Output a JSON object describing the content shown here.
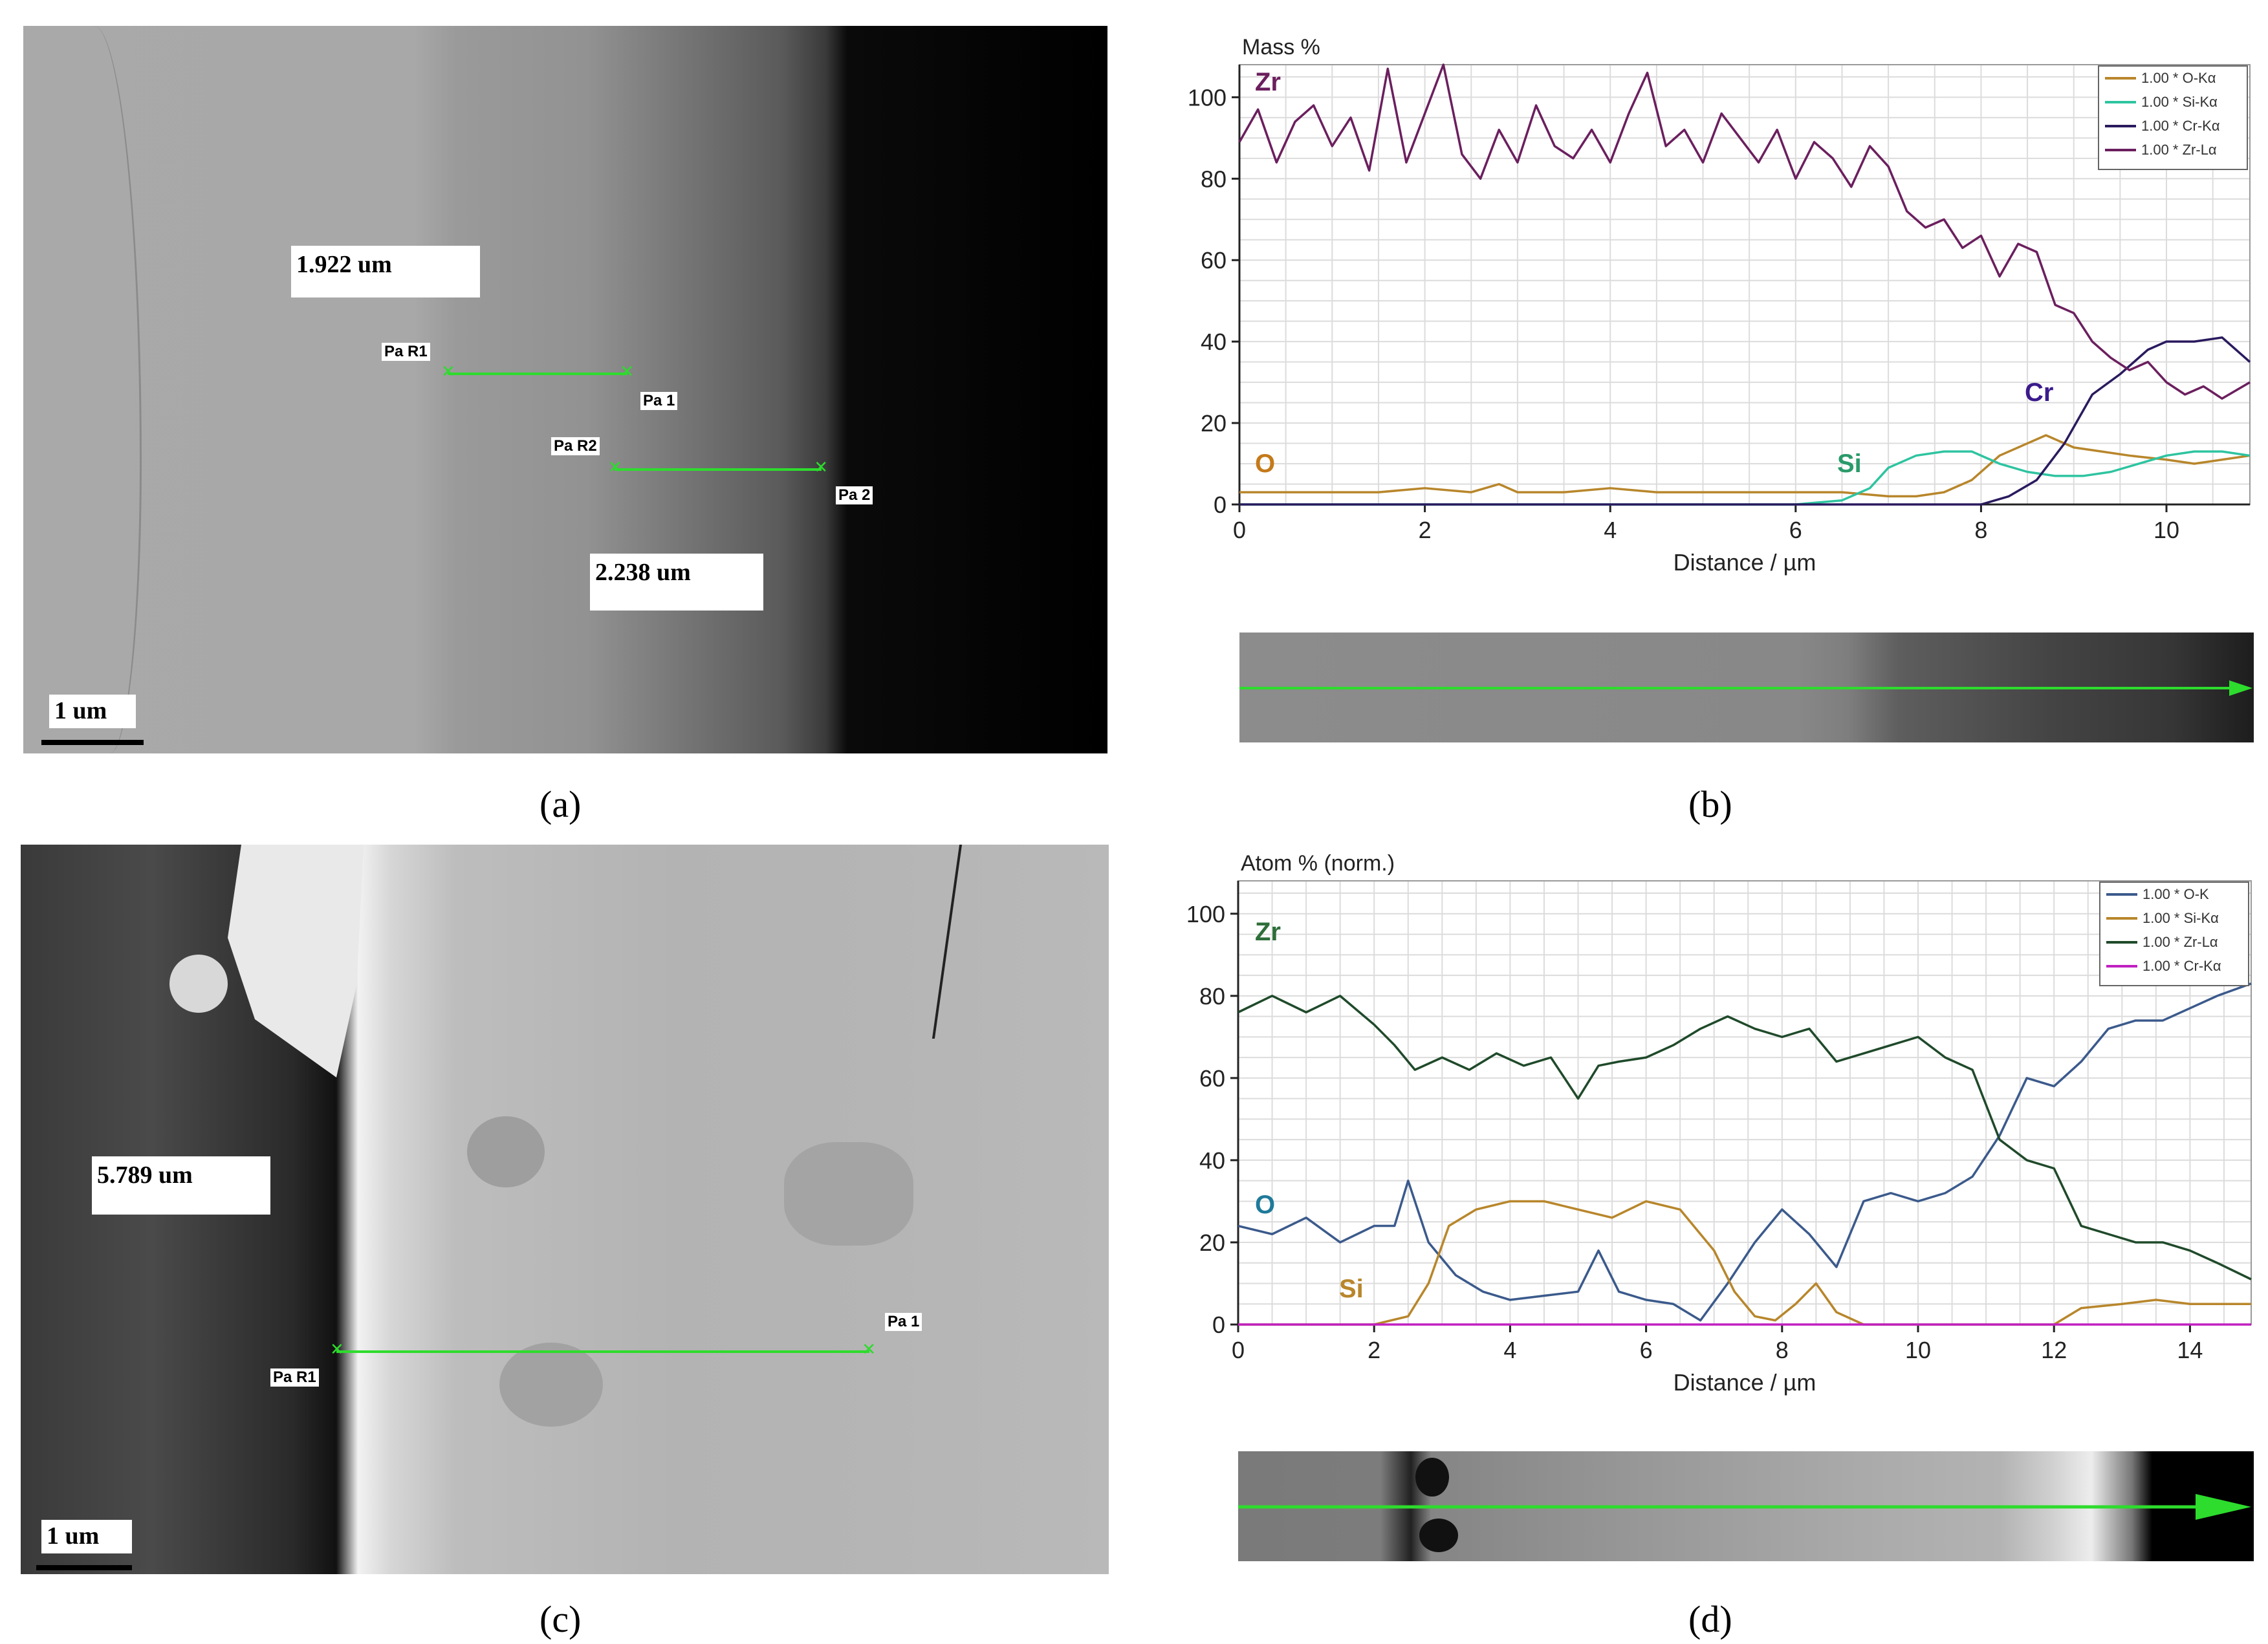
{
  "panel_a": {
    "caption": "(a)",
    "measure1": "1.922 um",
    "measure2": "2.238 um",
    "tags": {
      "pa_r1": "Pa R1",
      "pa_1": "Pa 1",
      "pa_r2": "Pa R2",
      "pa_2": "Pa 2"
    },
    "scale": "1 um"
  },
  "panel_c": {
    "caption": "(c)",
    "measure1": "5.789 um",
    "tags": {
      "pa_r1": "Pa R1",
      "pa_1": "Pa 1"
    },
    "scale": "1 um"
  },
  "panel_b": {
    "caption": "(b)"
  },
  "panel_d": {
    "caption": "(d)"
  },
  "colors": {
    "line_green": "#2ddc2d"
  },
  "chart_data": [
    {
      "type": "line",
      "panel": "b",
      "ylabel": "Mass %",
      "xlabel": "Distance / µm",
      "xlim": [
        0,
        10.9
      ],
      "ylim": [
        0,
        108
      ],
      "xticks": [
        0,
        2,
        4,
        6,
        8,
        10
      ],
      "yticks": [
        0,
        20,
        40,
        60,
        80,
        100
      ],
      "grid": true,
      "legend_position": "top-right",
      "annotations": [
        {
          "text": "Zr",
          "color": "#6b1f5e"
        },
        {
          "text": "Cr",
          "color": "#3b1a8c"
        },
        {
          "text": "Si",
          "color": "#2a9a6a"
        },
        {
          "text": "O",
          "color": "#c47a1a"
        }
      ],
      "series": [
        {
          "name": "1.00 * O-Kα",
          "color": "#b8862b",
          "x": [
            0,
            0.5,
            1,
            1.5,
            2,
            2.5,
            2.8,
            3,
            3.5,
            4,
            4.5,
            5,
            5.5,
            6,
            6.5,
            7,
            7.3,
            7.6,
            7.9,
            8.2,
            8.5,
            8.7,
            9,
            9.3,
            9.6,
            10,
            10.3,
            10.6,
            10.9
          ],
          "y": [
            3,
            3,
            3,
            3,
            4,
            3,
            5,
            3,
            3,
            4,
            3,
            3,
            3,
            3,
            3,
            2,
            2,
            3,
            6,
            12,
            15,
            17,
            14,
            13,
            12,
            11,
            10,
            11,
            12
          ]
        },
        {
          "name": "1.00 * Si-Kα",
          "color": "#2ec4a0",
          "x": [
            0,
            2,
            4,
            6,
            6.5,
            6.8,
            7,
            7.3,
            7.6,
            7.9,
            8.2,
            8.5,
            8.8,
            9.1,
            9.4,
            9.7,
            10,
            10.3,
            10.6,
            10.9
          ],
          "y": [
            0,
            0,
            0,
            0,
            1,
            4,
            9,
            12,
            13,
            13,
            10,
            8,
            7,
            7,
            8,
            10,
            12,
            13,
            13,
            12
          ]
        },
        {
          "name": "1.00 * Cr-Kα",
          "color": "#2a1a5e",
          "x": [
            0,
            2,
            4,
            6,
            7,
            8,
            8.3,
            8.6,
            8.9,
            9.2,
            9.5,
            9.8,
            10,
            10.3,
            10.6,
            10.9
          ],
          "y": [
            0,
            0,
            0,
            0,
            0,
            0,
            2,
            6,
            15,
            27,
            32,
            38,
            40,
            40,
            41,
            35
          ]
        },
        {
          "name": "1.00 * Zr-Lα",
          "color": "#6b1f5e",
          "x": [
            0,
            0.2,
            0.4,
            0.6,
            0.8,
            1,
            1.2,
            1.4,
            1.6,
            1.8,
            2,
            2.2,
            2.4,
            2.6,
            2.8,
            3,
            3.2,
            3.4,
            3.6,
            3.8,
            4,
            4.2,
            4.4,
            4.6,
            4.8,
            5,
            5.2,
            5.4,
            5.6,
            5.8,
            6,
            6.2,
            6.4,
            6.6,
            6.8,
            7,
            7.2,
            7.4,
            7.6,
            7.8,
            8,
            8.2,
            8.4,
            8.6,
            8.8,
            9,
            9.2,
            9.4,
            9.6,
            9.8,
            10,
            10.2,
            10.4,
            10.6,
            10.9
          ],
          "y": [
            89,
            97,
            84,
            94,
            98,
            88,
            95,
            82,
            107,
            84,
            96,
            108,
            86,
            80,
            92,
            84,
            98,
            88,
            85,
            92,
            84,
            96,
            106,
            88,
            92,
            84,
            96,
            90,
            84,
            92,
            80,
            89,
            85,
            78,
            88,
            83,
            72,
            68,
            70,
            63,
            66,
            56,
            64,
            62,
            49,
            47,
            40,
            36,
            33,
            35,
            30,
            27,
            29,
            26,
            30
          ]
        }
      ]
    },
    {
      "type": "line",
      "panel": "d",
      "ylabel": "Atom % (norm.)",
      "xlabel": "Distance / µm",
      "xlim": [
        0,
        14.9
      ],
      "ylim": [
        0,
        108
      ],
      "xticks": [
        0,
        2,
        4,
        6,
        8,
        10,
        12,
        14
      ],
      "yticks": [
        0,
        20,
        40,
        60,
        80,
        100
      ],
      "grid": true,
      "legend_position": "top-right",
      "annotations": [
        {
          "text": "Zr",
          "color": "#2e6e3a"
        },
        {
          "text": "O",
          "color": "#1f7a9a"
        },
        {
          "text": "Si",
          "color": "#b8862b"
        }
      ],
      "series": [
        {
          "name": "1.00 * O-K",
          "color": "#3b5a8c",
          "x": [
            0,
            0.5,
            1,
            1.5,
            2,
            2.3,
            2.5,
            2.8,
            3.2,
            3.6,
            4,
            4.5,
            5,
            5.3,
            5.6,
            6,
            6.4,
            6.8,
            7.2,
            7.6,
            8,
            8.4,
            8.8,
            9.2,
            9.6,
            10,
            10.4,
            10.8,
            11.2,
            11.6,
            12,
            12.4,
            12.8,
            13.2,
            13.6,
            14,
            14.4,
            14.9
          ],
          "y": [
            24,
            22,
            26,
            20,
            24,
            24,
            35,
            20,
            12,
            8,
            6,
            7,
            8,
            18,
            8,
            6,
            5,
            1,
            10,
            20,
            28,
            22,
            14,
            30,
            32,
            30,
            32,
            36,
            46,
            60,
            58,
            64,
            72,
            74,
            74,
            77,
            80,
            83
          ]
        },
        {
          "name": "1.00 * Si-Kα",
          "color": "#b8862b",
          "x": [
            0,
            2,
            2.5,
            2.8,
            3.1,
            3.5,
            4,
            4.5,
            5,
            5.5,
            6,
            6.5,
            7,
            7.3,
            7.6,
            7.9,
            8.2,
            8.5,
            8.8,
            9.2,
            10,
            12,
            12.4,
            13,
            13.5,
            14,
            14.9
          ],
          "y": [
            0,
            0,
            2,
            10,
            24,
            28,
            30,
            30,
            28,
            26,
            30,
            28,
            18,
            8,
            2,
            1,
            5,
            10,
            3,
            0,
            0,
            0,
            4,
            5,
            6,
            5,
            5
          ]
        },
        {
          "name": "1.00 * Zr-Lα",
          "color": "#1f4a2a",
          "x": [
            0,
            0.5,
            1,
            1.5,
            2,
            2.3,
            2.6,
            3,
            3.4,
            3.8,
            4.2,
            4.6,
            5,
            5.3,
            5.6,
            6,
            6.4,
            6.8,
            7.2,
            7.6,
            8,
            8.4,
            8.8,
            9.2,
            9.6,
            10,
            10.4,
            10.8,
            11.2,
            11.6,
            12,
            12.4,
            12.8,
            13.2,
            13.6,
            14,
            14.4,
            14.9
          ],
          "y": [
            76,
            80,
            76,
            80,
            73,
            68,
            62,
            65,
            62,
            66,
            63,
            65,
            55,
            63,
            64,
            65,
            68,
            72,
            75,
            72,
            70,
            72,
            64,
            66,
            68,
            70,
            65,
            62,
            45,
            40,
            38,
            24,
            22,
            20,
            20,
            18,
            15,
            11
          ]
        },
        {
          "name": "1.00 * Cr-Kα",
          "color": "#c020c0",
          "x": [
            0,
            3,
            6,
            9,
            12,
            14.9
          ],
          "y": [
            0,
            0,
            0,
            0,
            0,
            0
          ]
        }
      ]
    }
  ]
}
